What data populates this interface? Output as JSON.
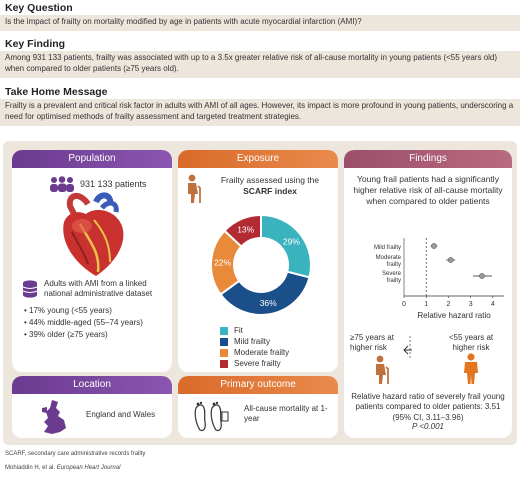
{
  "key_question": {
    "heading": "Key Question",
    "text": "Is the impact of frailty on mortality modified by age in patients with acute myocardial infarction (AMI)?"
  },
  "key_finding": {
    "heading": "Key Finding",
    "text": "Among 931 133 patients, frailty was associated with up to a 3.5x greater relative risk of all-cause mortality in young patients (<55 years old) when compared to older patients (≥75 years old)."
  },
  "take_home": {
    "heading": "Take Home Message",
    "text": "Frailty is a prevalent and critical risk factor in adults with AMI of all ages. However, its impact is more profound in young patients, underscoring a need for optimised methods of frailty assessment and targeted treatment strategies."
  },
  "population": {
    "title": "Population",
    "count": "931 133 patients",
    "desc": "Adults with AMI from a linked national administrative dataset",
    "bullets": [
      "17% young (<55 years)",
      "44% middle-aged (55–74 years)",
      "39% older (≥75 years)"
    ]
  },
  "exposure": {
    "title": "Exposure",
    "desc_pre": "Frailty assessed using the",
    "desc_bold": "SCARF index"
  },
  "chart_data": {
    "type": "pie",
    "subtype": "donut",
    "categories": [
      "Fit",
      "Mild frailty",
      "Moderate frailty",
      "Severe frailty"
    ],
    "values": [
      29,
      36,
      22,
      13
    ],
    "labels": [
      "29%",
      "36%",
      "22%",
      "13%"
    ],
    "colors": [
      "#3ab3bf",
      "#1a4f8a",
      "#e98a3a",
      "#b22b33"
    ]
  },
  "findings": {
    "title": "Findings",
    "summary": "Young frail patients had a significantly higher relative risk of all-cause mortality when compared to older patients",
    "forest": {
      "rows": [
        "Mild frailty",
        "Moderate frailty",
        "Severe frailty"
      ],
      "estimates": [
        1.35,
        2.1,
        3.51
      ],
      "ci_low": [
        1.2,
        1.9,
        3.11
      ],
      "ci_high": [
        1.5,
        2.3,
        3.96
      ],
      "ticks": [
        "0",
        "1",
        "2",
        "3",
        "4"
      ],
      "xlim": [
        0,
        4.5
      ],
      "reference": 1,
      "xlabel": "Relative hazard ratio"
    },
    "older_label": "≥75 years at higher risk",
    "younger_label": "<55 years at higher risk",
    "result": "Relative hazard ratio of severely frail young patients compared to older patients: 3.51 (95% CI, 3.11–3.96)",
    "pvalue": "P <0.001"
  },
  "location": {
    "title": "Location",
    "text": "England and Wales"
  },
  "outcome": {
    "title": "Primary outcome",
    "text": "All-cause mortality at 1-year"
  },
  "footnote": "SCARF, secondary care administrative records frailty",
  "citation_author": "Mohiaddin H, et al.",
  "citation_journal": "European Heart Journal"
}
